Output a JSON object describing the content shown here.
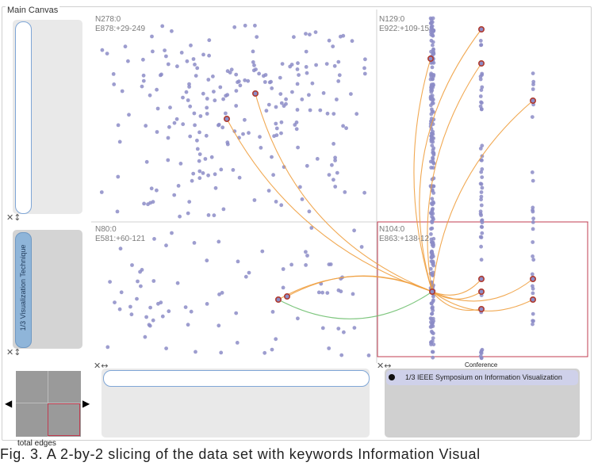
{
  "window": {
    "title": "Main Canvas"
  },
  "quadrants": [
    {
      "id": "top-left",
      "nodes": "N278:0",
      "edges": "E878:+29-249"
    },
    {
      "id": "top-right",
      "nodes": "N129:0",
      "edges": "E922:+109-15"
    },
    {
      "id": "bottom-left",
      "nodes": "N80:0",
      "edges": "E581:+60-121"
    },
    {
      "id": "bottom-right",
      "nodes": "N104:0",
      "edges": "E863:+138-12"
    }
  ],
  "y_axis": {
    "facet_label": "1/3 Visualization Technique",
    "control_glyph": "✕↕"
  },
  "x_axis": {
    "title": "Conference",
    "left_control_glyph": "✕↔",
    "selected_item": "1/3 IEEE Symposium on Information Visualization"
  },
  "overview": {
    "label": "total edges",
    "arrow_left": "◀",
    "arrow_right": "▶"
  },
  "caption": "Fig. 3. A 2-by-2 slicing of the data set with keywords Information Visual",
  "colors": {
    "node": "#8c8cc7",
    "selected_node": "#b03a2e",
    "edge_orange": "#f0a040",
    "edge_green": "#70c070",
    "focus_border": "#c03c50",
    "facet_active": "#8fb5d9",
    "selected_item_bg": "#cfd1ea"
  }
}
